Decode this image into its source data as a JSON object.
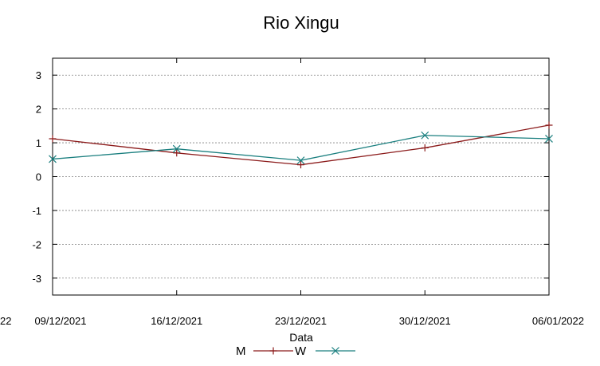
{
  "chart_data": {
    "type": "line",
    "title": "Rio Xingu",
    "xlabel": "Data",
    "ylabel": "",
    "x_ticks": [
      "09/12/2021",
      "16/12/2021",
      "23/12/2021",
      "30/12/2021",
      "06/01/2022"
    ],
    "clipped_left_tick": "22",
    "clipped_y_fragment": "",
    "ylim": [
      -3.5,
      3.5
    ],
    "y_ticks": [
      "3",
      "2",
      "1",
      "0",
      "-1",
      "-2",
      "-3"
    ],
    "grid": true,
    "legend_placement": "bottom-center",
    "series": [
      {
        "name": "M",
        "color": "#8b1a1a",
        "marker": "plus",
        "x": [
          "09/12/2021",
          "16/12/2021",
          "23/12/2021",
          "30/12/2021",
          "06/01/2022"
        ],
        "y": [
          1.12,
          0.7,
          0.35,
          0.85,
          1.52
        ]
      },
      {
        "name": "W",
        "color": "#1a7f7f",
        "marker": "cross",
        "x": [
          "09/12/2021",
          "16/12/2021",
          "23/12/2021",
          "30/12/2021",
          "06/01/2022"
        ],
        "y": [
          0.52,
          0.82,
          0.48,
          1.22,
          1.12
        ]
      }
    ]
  }
}
